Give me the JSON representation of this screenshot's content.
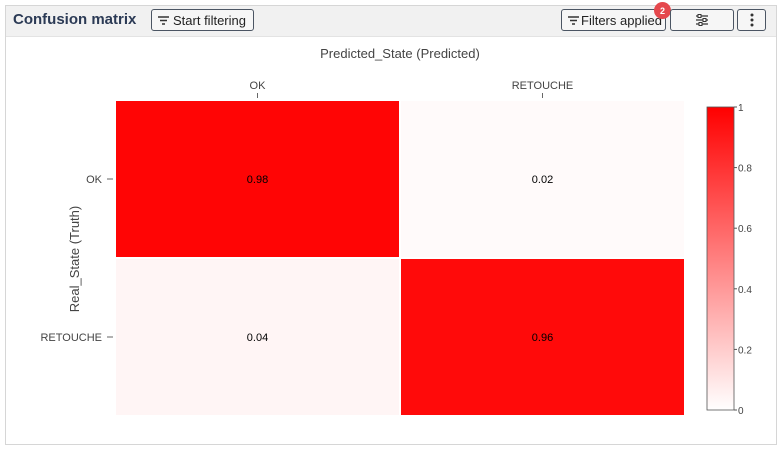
{
  "panel": {
    "title": "Confusion matrix",
    "start_filtering_label": "Start filtering",
    "filters_applied_label": "Filters applied",
    "filters_count": "2",
    "icons": {
      "filter": "filter-icon",
      "settings": "sliders-icon",
      "more": "more-vertical-icon"
    }
  },
  "chart_data": {
    "type": "heatmap",
    "xlabel": "Predicted_State (Predicted)",
    "ylabel": "Real_State (Truth)",
    "x_categories": [
      "OK",
      "RETOUCHE"
    ],
    "y_categories": [
      "OK",
      "RETOUCHE"
    ],
    "values": [
      [
        0.98,
        0.02
      ],
      [
        0.04,
        0.96
      ]
    ],
    "cell_labels": [
      [
        "0.98",
        "0.02"
      ],
      [
        "0.04",
        "0.96"
      ]
    ],
    "colorscale": {
      "min": 0,
      "max": 1,
      "low_color": "#ffffff",
      "high_color": "#ff0000",
      "ticks": [
        "0",
        "0.2",
        "0.4",
        "0.6",
        "0.8",
        "1"
      ]
    }
  }
}
